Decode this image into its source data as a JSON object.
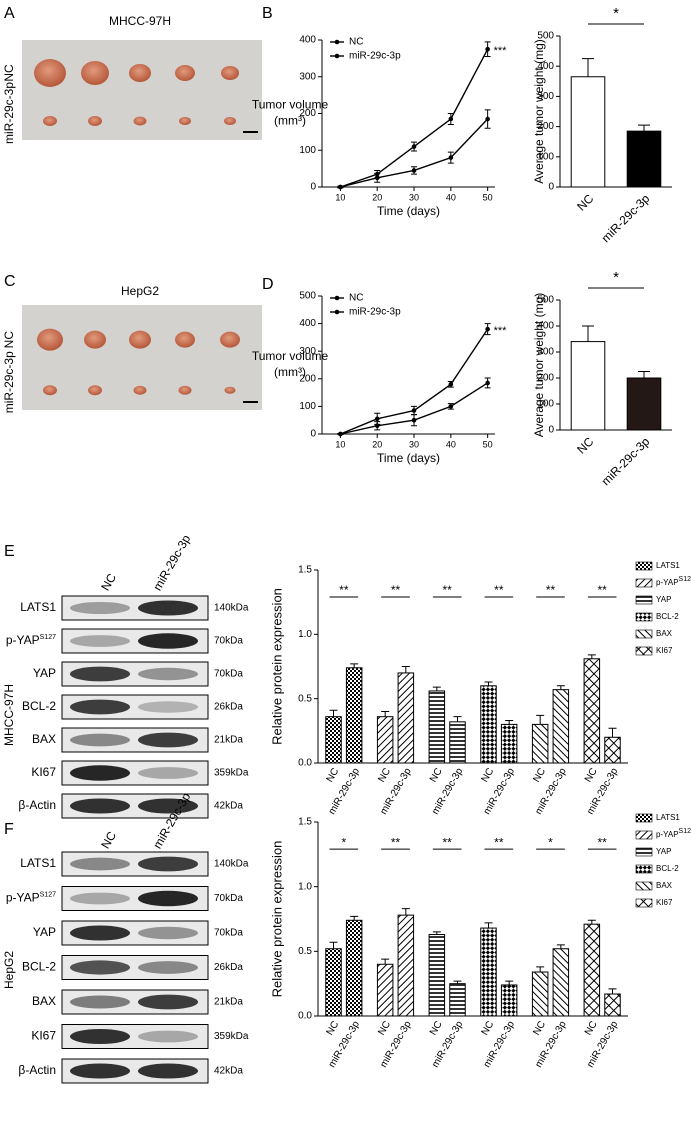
{
  "panels": [
    "A",
    "B",
    "C",
    "D",
    "E",
    "F"
  ],
  "photos": [
    {
      "title": "MHCC-97H",
      "rows": [
        "NC",
        "miR-29c-3p"
      ]
    },
    {
      "title": "HepG2",
      "rows": [
        "NC",
        "miR-29c-3p"
      ]
    }
  ],
  "blots": [
    {
      "cell_line": "MHCC-97H",
      "lanes": [
        "NC",
        "miR-29c-3p"
      ],
      "proteins": [
        {
          "name": "LATS1",
          "size": "140kDa"
        },
        {
          "name": "p-YAP",
          "sup": "S127",
          "size": "70kDa"
        },
        {
          "name": "YAP",
          "size": "70kDa"
        },
        {
          "name": "BCL-2",
          "size": "26kDa"
        },
        {
          "name": "BAX",
          "size": "21kDa"
        },
        {
          "name": "KI67",
          "size": "359kDa"
        },
        {
          "name": "β-Actin",
          "size": "42kDa"
        }
      ]
    },
    {
      "cell_line": "HepG2",
      "lanes": [
        "NC",
        "miR-29c-3p"
      ],
      "proteins": [
        {
          "name": "LATS1",
          "size": "140kDa"
        },
        {
          "name": "p-YAP",
          "sup": "S127",
          "size": "70kDa"
        },
        {
          "name": "YAP",
          "size": "70kDa"
        },
        {
          "name": "BCL-2",
          "size": "26kDa"
        },
        {
          "name": "BAX",
          "size": "21kDa"
        },
        {
          "name": "KI67",
          "size": "359kDa"
        },
        {
          "name": "β-Actin",
          "size": "42kDa"
        }
      ]
    }
  ],
  "chart_data": [
    {
      "type": "line",
      "xlabel": "Time (days)",
      "ylabel": "Tumor volume",
      "ylabel_unit": "(mm³)",
      "x": [
        10,
        20,
        30,
        40,
        50
      ],
      "xlim": [
        5,
        52
      ],
      "xticks": [
        10,
        20,
        30,
        40,
        50
      ],
      "ylim": [
        0,
        400
      ],
      "yticks": [
        0,
        100,
        200,
        300,
        400
      ],
      "annotation": "***",
      "series": [
        {
          "name": "NC",
          "color": "#000000",
          "values": [
            0,
            35,
            110,
            185,
            375
          ],
          "errors": [
            2,
            10,
            12,
            15,
            20
          ]
        },
        {
          "name": "miR-29c-3p",
          "color": "#000000",
          "values": [
            0,
            25,
            45,
            80,
            185
          ],
          "errors": [
            2,
            12,
            10,
            15,
            25
          ]
        }
      ]
    },
    {
      "type": "bar",
      "ylabel": "Average tumor weight (mg)",
      "categories": [
        "NC",
        "miR-29c-3p"
      ],
      "values": [
        365,
        185
      ],
      "errors": [
        60,
        20
      ],
      "colors": [
        "#ffffff",
        "#000000"
      ],
      "ylim": [
        0,
        500
      ],
      "yticks": [
        0,
        100,
        200,
        300,
        400,
        500
      ],
      "annotation": "*"
    },
    {
      "type": "line",
      "xlabel": "Time (days)",
      "ylabel": "Tumor volume",
      "ylabel_unit": "(mm³)",
      "x": [
        10,
        20,
        30,
        40,
        50
      ],
      "xlim": [
        5,
        52
      ],
      "xticks": [
        10,
        20,
        30,
        40,
        50
      ],
      "ylim": [
        0,
        500
      ],
      "yticks": [
        0,
        100,
        200,
        300,
        400,
        500
      ],
      "annotation": "***",
      "series": [
        {
          "name": "NC",
          "color": "#000000",
          "values": [
            0,
            55,
            85,
            180,
            380
          ],
          "errors": [
            2,
            20,
            15,
            10,
            20
          ]
        },
        {
          "name": "miR-29c-3p",
          "color": "#000000",
          "values": [
            0,
            30,
            50,
            100,
            185
          ],
          "errors": [
            2,
            15,
            20,
            10,
            18
          ]
        }
      ]
    },
    {
      "type": "bar",
      "ylabel": "Average tumor weight (mg)",
      "categories": [
        "NC",
        "miR-29c-3p"
      ],
      "values": [
        340,
        200
      ],
      "errors": [
        60,
        25
      ],
      "colors": [
        "#ffffff",
        "#231815"
      ],
      "ylim": [
        0,
        500
      ],
      "yticks": [
        0,
        100,
        200,
        300,
        400,
        500
      ],
      "annotation": "*"
    },
    {
      "type": "grouped_bar",
      "ylabel": "Relative protein expression",
      "categories": [
        "NC",
        "miR-29c-3p"
      ],
      "ylim": [
        0,
        1.5
      ],
      "yticks": [
        {
          "value": 0,
          "label": "0.0"
        },
        {
          "value": 0.5,
          "label": "0.5"
        },
        {
          "value": 1,
          "label": "1.0"
        },
        {
          "value": 1.5,
          "label": "1.5"
        }
      ],
      "significance": [
        "**",
        "**",
        "**",
        "**",
        "**",
        "**"
      ],
      "series": [
        {
          "name": "LATS1",
          "pattern": "checker",
          "values": [
            0.36,
            0.74
          ],
          "errors": [
            0.05,
            0.03
          ]
        },
        {
          "name": "p-YAP",
          "sup": "S127",
          "pattern": "slash",
          "values": [
            0.36,
            0.7
          ],
          "errors": [
            0.04,
            0.05
          ]
        },
        {
          "name": "YAP",
          "pattern": "horizontal",
          "values": [
            0.56,
            0.32
          ],
          "errors": [
            0.03,
            0.04
          ]
        },
        {
          "name": "BCL-2",
          "pattern": "diamond",
          "values": [
            0.6,
            0.3
          ],
          "errors": [
            0.03,
            0.03
          ]
        },
        {
          "name": "BAX",
          "pattern": "backslash",
          "values": [
            0.3,
            0.57
          ],
          "errors": [
            0.07,
            0.03
          ]
        },
        {
          "name": "KI67",
          "pattern": "cross",
          "values": [
            0.81,
            0.2
          ],
          "errors": [
            0.03,
            0.07
          ]
        }
      ]
    },
    {
      "type": "grouped_bar",
      "ylabel": "Relative protein expression",
      "categories": [
        "NC",
        "miR-29c-3p"
      ],
      "ylim": [
        0,
        1.5
      ],
      "yticks": [
        {
          "value": 0,
          "label": "0.0"
        },
        {
          "value": 0.5,
          "label": "0.5"
        },
        {
          "value": 1,
          "label": "1.0"
        },
        {
          "value": 1.5,
          "label": "1.5"
        }
      ],
      "significance": [
        "*",
        "**",
        "**",
        "**",
        "*",
        "**"
      ],
      "series": [
        {
          "name": "LATS1",
          "pattern": "checker",
          "values": [
            0.52,
            0.74
          ],
          "errors": [
            0.05,
            0.03
          ]
        },
        {
          "name": "p-YAP",
          "sup": "S127",
          "pattern": "slash",
          "values": [
            0.4,
            0.78
          ],
          "errors": [
            0.04,
            0.05
          ]
        },
        {
          "name": "YAP",
          "pattern": "horizontal",
          "values": [
            0.63,
            0.25
          ],
          "errors": [
            0.02,
            0.02
          ]
        },
        {
          "name": "BCL-2",
          "pattern": "diamond",
          "values": [
            0.68,
            0.24
          ],
          "errors": [
            0.04,
            0.03
          ]
        },
        {
          "name": "BAX",
          "pattern": "backslash",
          "values": [
            0.34,
            0.52
          ],
          "errors": [
            0.04,
            0.03
          ]
        },
        {
          "name": "KI67",
          "pattern": "cross",
          "values": [
            0.71,
            0.17
          ],
          "errors": [
            0.03,
            0.04
          ]
        }
      ]
    }
  ]
}
